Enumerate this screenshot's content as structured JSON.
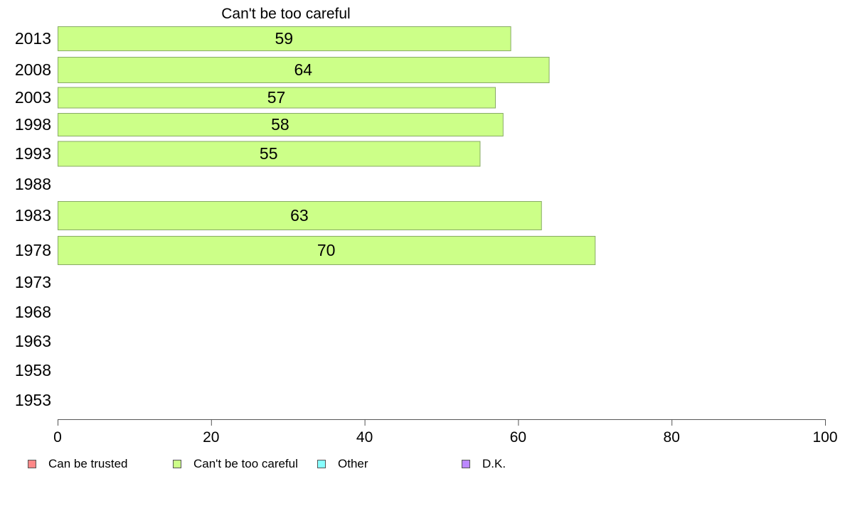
{
  "chart_data": {
    "type": "bar",
    "orientation": "horizontal",
    "title": "Can't be too careful",
    "categories": [
      "2013",
      "2008",
      "2003",
      "1998",
      "1993",
      "1988",
      "1983",
      "1978",
      "1973",
      "1968",
      "1963",
      "1958",
      "1953"
    ],
    "series": [
      {
        "name": "Can't be too careful",
        "values": [
          59,
          64,
          57,
          58,
          55,
          null,
          63,
          70,
          null,
          null,
          null,
          null,
          null
        ]
      }
    ],
    "xlim": [
      0,
      100
    ],
    "xticks": [
      "0",
      "20",
      "40",
      "60",
      "80",
      "100"
    ],
    "xlabel": "",
    "ylabel": "",
    "grid": false,
    "legend_position": "bottom",
    "bar_color": "#ccff88",
    "bar_edge_color": "#88aa66"
  },
  "legend": [
    {
      "label": "Can be trusted",
      "color": "#ff8888"
    },
    {
      "label": "Can't be too careful",
      "color": "#ccff88"
    },
    {
      "label": "Other",
      "color": "#88ffff"
    },
    {
      "label": "D.K.",
      "color": "#bb88ff"
    }
  ]
}
